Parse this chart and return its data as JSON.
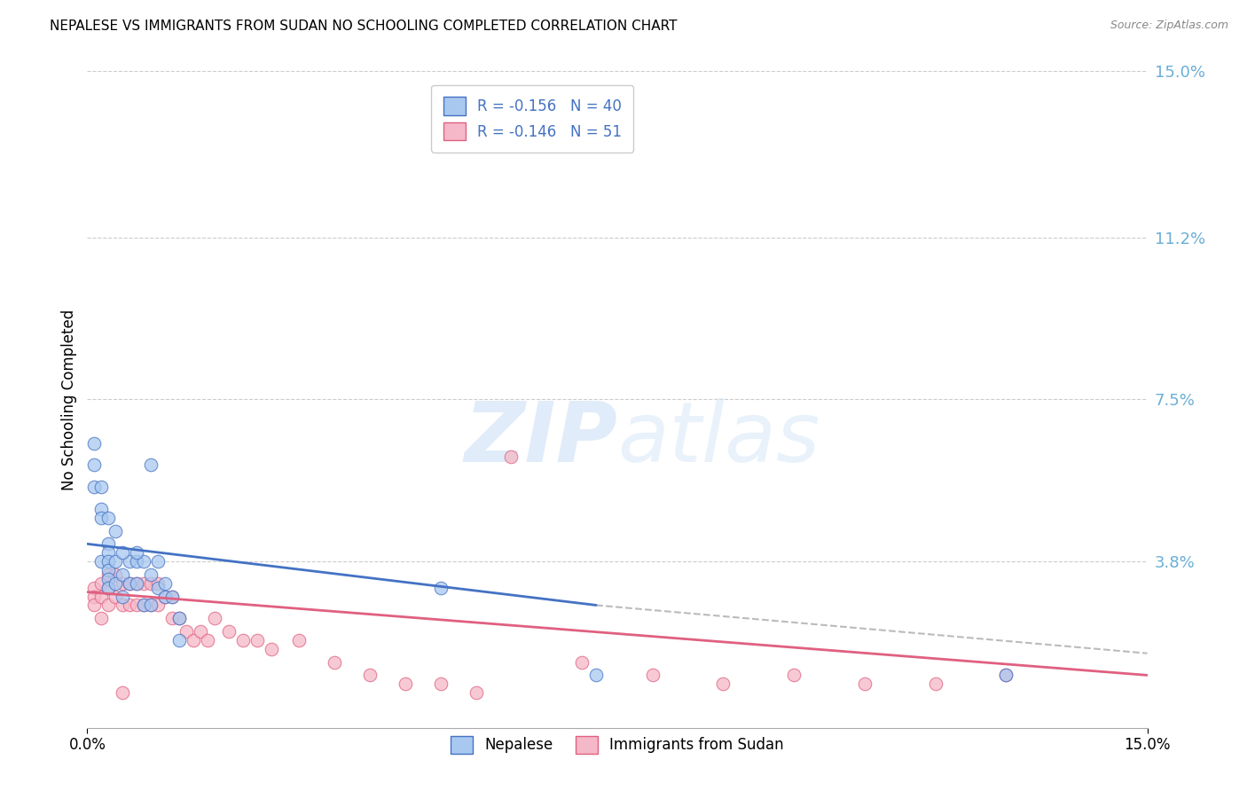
{
  "title": "NEPALESE VS IMMIGRANTS FROM SUDAN NO SCHOOLING COMPLETED CORRELATION CHART",
  "source": "Source: ZipAtlas.com",
  "ylabel": "No Schooling Completed",
  "xlim": [
    0.0,
    0.15
  ],
  "ylim": [
    0.0,
    0.15
  ],
  "ytick_labels_right": [
    "15.0%",
    "11.2%",
    "7.5%",
    "3.8%"
  ],
  "ytick_positions_right": [
    0.15,
    0.112,
    0.075,
    0.038
  ],
  "legend_label1": "R = -0.156   N = 40",
  "legend_label2": "R = -0.146   N = 51",
  "legend_bottom1": "Nepalese",
  "legend_bottom2": "Immigrants from Sudan",
  "color_blue": "#A8C8F0",
  "color_pink": "#F5B8C8",
  "line_color_blue": "#4472C4",
  "line_color_pink": "#E06080",
  "line_color_dash": "#BBBBBB",
  "watermark_zip": "ZIP",
  "watermark_atlas": "atlas",
  "blue_points_x": [
    0.001,
    0.001,
    0.001,
    0.002,
    0.002,
    0.002,
    0.002,
    0.003,
    0.003,
    0.003,
    0.003,
    0.003,
    0.003,
    0.004,
    0.004,
    0.005,
    0.005,
    0.006,
    0.006,
    0.007,
    0.007,
    0.008,
    0.008,
    0.009,
    0.009,
    0.01,
    0.01,
    0.011,
    0.012,
    0.013,
    0.003,
    0.004,
    0.005,
    0.007,
    0.009,
    0.011,
    0.013,
    0.05,
    0.072,
    0.13
  ],
  "blue_points_y": [
    0.065,
    0.06,
    0.055,
    0.055,
    0.05,
    0.048,
    0.038,
    0.042,
    0.04,
    0.038,
    0.036,
    0.034,
    0.032,
    0.038,
    0.033,
    0.035,
    0.03,
    0.038,
    0.033,
    0.038,
    0.033,
    0.038,
    0.028,
    0.035,
    0.028,
    0.038,
    0.032,
    0.03,
    0.03,
    0.025,
    0.048,
    0.045,
    0.04,
    0.04,
    0.06,
    0.033,
    0.02,
    0.032,
    0.012,
    0.012
  ],
  "pink_points_x": [
    0.001,
    0.001,
    0.001,
    0.002,
    0.002,
    0.002,
    0.003,
    0.003,
    0.003,
    0.004,
    0.004,
    0.005,
    0.005,
    0.006,
    0.006,
    0.007,
    0.007,
    0.008,
    0.008,
    0.009,
    0.009,
    0.01,
    0.01,
    0.011,
    0.012,
    0.012,
    0.013,
    0.014,
    0.015,
    0.016,
    0.017,
    0.018,
    0.02,
    0.022,
    0.024,
    0.026,
    0.03,
    0.035,
    0.04,
    0.045,
    0.05,
    0.055,
    0.06,
    0.07,
    0.08,
    0.09,
    0.1,
    0.11,
    0.12,
    0.13,
    0.005
  ],
  "pink_points_y": [
    0.032,
    0.03,
    0.028,
    0.033,
    0.03,
    0.025,
    0.035,
    0.032,
    0.028,
    0.035,
    0.03,
    0.033,
    0.028,
    0.033,
    0.028,
    0.033,
    0.028,
    0.033,
    0.028,
    0.033,
    0.028,
    0.033,
    0.028,
    0.03,
    0.03,
    0.025,
    0.025,
    0.022,
    0.02,
    0.022,
    0.02,
    0.025,
    0.022,
    0.02,
    0.02,
    0.018,
    0.02,
    0.015,
    0.012,
    0.01,
    0.01,
    0.008,
    0.062,
    0.015,
    0.012,
    0.01,
    0.012,
    0.01,
    0.01,
    0.012,
    0.008
  ],
  "blue_line_x": [
    0.0,
    0.072
  ],
  "blue_line_y": [
    0.042,
    0.028
  ],
  "pink_line_x": [
    0.0,
    0.15
  ],
  "pink_line_y": [
    0.031,
    0.012
  ],
  "dash_line_x": [
    0.072,
    0.15
  ],
  "dash_line_y": [
    0.028,
    0.017
  ],
  "grid_color": "#CCCCCC",
  "background_color": "#FFFFFF",
  "title_fontsize": 11,
  "axis_label_color": "#6BAED6",
  "legend_text_color": "#4472C4"
}
